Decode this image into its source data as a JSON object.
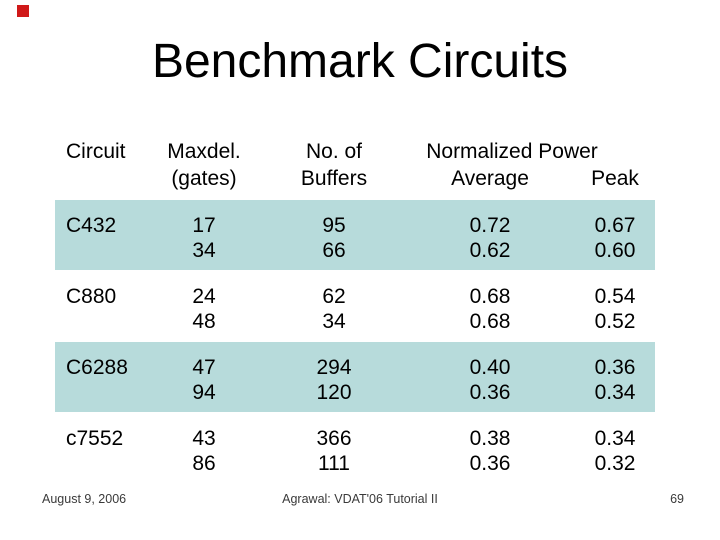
{
  "title": "Benchmark Circuits",
  "colors": {
    "row_highlight": "#b7dbdb",
    "corner_logo_red": "#d01919",
    "footer_text": "#3a3a3a"
  },
  "table": {
    "headers": {
      "circuit": "Circuit",
      "maxdel_line1": "Maxdel.",
      "maxdel_line2": "(gates)",
      "buffers_line1": "No. of",
      "buffers_line2": "Buffers",
      "normalized_power": "Normalized Power",
      "average": "Average",
      "peak": "Peak"
    },
    "rows": [
      {
        "circuit": "C432",
        "maxdel": [
          "17",
          "34"
        ],
        "buffers": [
          "95",
          "66"
        ],
        "average": [
          "0.72",
          "0.62"
        ],
        "peak": [
          "0.67",
          "0.60"
        ],
        "highlighted": true
      },
      {
        "circuit": "C880",
        "maxdel": [
          "24",
          "48"
        ],
        "buffers": [
          "62",
          "34"
        ],
        "average": [
          "0.68",
          "0.68"
        ],
        "peak": [
          "0.54",
          "0.52"
        ],
        "highlighted": false
      },
      {
        "circuit": "C6288",
        "maxdel": [
          "47",
          "94"
        ],
        "buffers": [
          "294",
          "120"
        ],
        "average": [
          "0.40",
          "0.36"
        ],
        "peak": [
          "0.36",
          "0.34"
        ],
        "highlighted": true
      },
      {
        "circuit": "c7552",
        "maxdel": [
          "43",
          "86"
        ],
        "buffers": [
          "366",
          "111"
        ],
        "average": [
          "0.38",
          "0.36"
        ],
        "peak": [
          "0.34",
          "0.32"
        ],
        "highlighted": false
      }
    ]
  },
  "footer": {
    "date": "August 9, 2006",
    "credit": "Agrawal: VDAT'06 Tutorial II",
    "page_number": "69"
  }
}
